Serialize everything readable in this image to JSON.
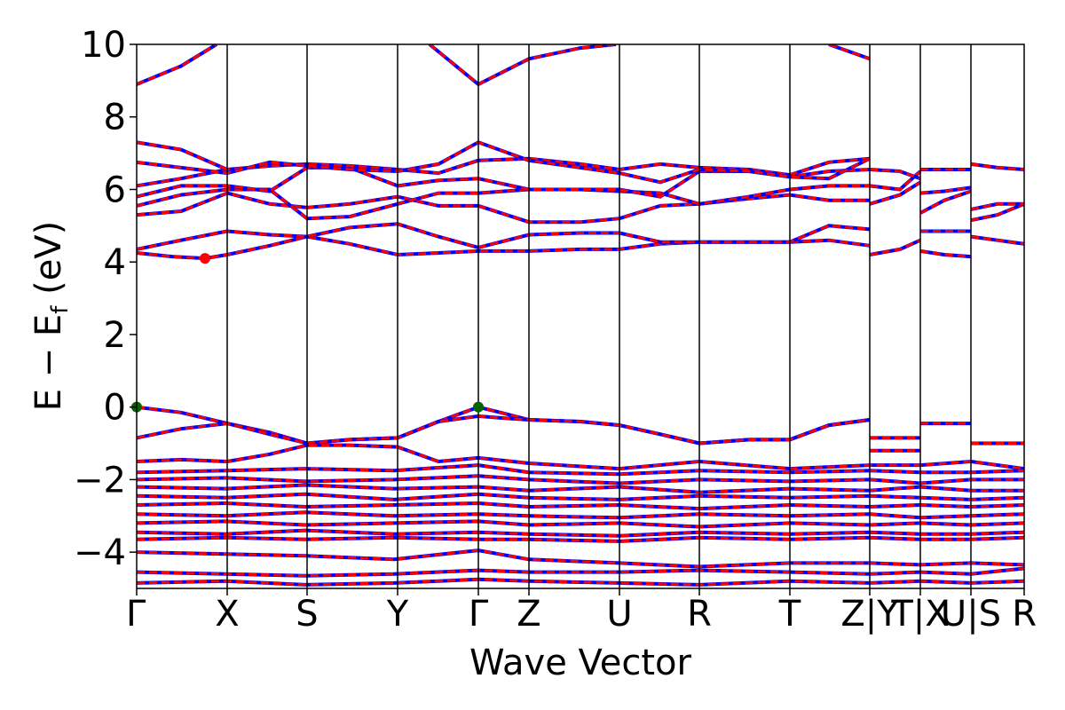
{
  "chart_data": {
    "type": "line",
    "xlabel": "Wave Vector",
    "ylabel": "E − E",
    "ylabel_sub": "f",
    "ylabel_unit": " (eV)",
    "ylim": [
      -5,
      10
    ],
    "yticks": [
      -4,
      -2,
      0,
      2,
      4,
      6,
      8,
      10
    ],
    "ytick_labels": [
      "−4",
      "−2",
      "0",
      "2",
      "4",
      "6",
      "8",
      "10"
    ],
    "xlim": [
      0,
      1
    ],
    "grid": false,
    "line_colors": {
      "band_primary": "#ff0000",
      "band_secondary": "#0000ff",
      "vline": "#000000"
    },
    "kpoints": [
      {
        "label": "Γ",
        "x": 0.0
      },
      {
        "label": "X",
        "x": 0.102
      },
      {
        "label": "S",
        "x": 0.192
      },
      {
        "label": "Y",
        "x": 0.294
      },
      {
        "label": "Γ",
        "x": 0.385
      },
      {
        "label": "Z",
        "x": 0.442
      },
      {
        "label": "U",
        "x": 0.544
      },
      {
        "label": "R",
        "x": 0.634
      },
      {
        "label": "T",
        "x": 0.736
      },
      {
        "label": "Z|Y",
        "x": 0.826
      },
      {
        "label": "T|X",
        "x": 0.883
      },
      {
        "label": "U|S",
        "x": 0.94
      },
      {
        "label": "R",
        "x": 1.0
      }
    ],
    "markers": [
      {
        "name": "vbm-1",
        "x": 0.0,
        "y": 0.0,
        "color": "#006400"
      },
      {
        "name": "vbm-2",
        "x": 0.385,
        "y": 0.0,
        "color": "#006400"
      },
      {
        "name": "cbm",
        "x": 0.077,
        "y": 4.1,
        "color": "#ff0000"
      }
    ],
    "series": [
      {
        "x": [
          0,
          0.05,
          0.102,
          0.15,
          0.192,
          0.24,
          0.294,
          0.34,
          0.385,
          0.41,
          0.442,
          0.5,
          0.544,
          0.59,
          0.634,
          0.69,
          0.736,
          0.78,
          0.826
        ],
        "values": [
          0,
          -0.15,
          -0.45,
          -0.7,
          -1.0,
          -0.9,
          -0.85,
          -0.4,
          0,
          -0.15,
          -0.35,
          -0.4,
          -0.5,
          -0.75,
          -1.0,
          -0.9,
          -0.9,
          -0.5,
          -0.35
        ]
      },
      {
        "x": [
          0,
          0.05,
          0.102,
          0.15,
          0.192,
          0.24,
          0.294,
          0.34,
          0.385,
          0.41,
          0.442,
          0.5,
          0.544,
          0.59,
          0.634,
          0.69,
          0.736,
          0.78,
          0.826
        ],
        "values": [
          -0.85,
          -0.6,
          -0.45,
          -0.75,
          -1.0,
          -0.9,
          -0.85,
          -0.4,
          -0.25,
          -0.3,
          -0.35,
          -0.4,
          -0.5,
          -0.75,
          -1.0,
          -0.9,
          -0.9,
          -0.5,
          -0.35
        ]
      },
      {
        "x": [
          0.826,
          0.883
        ],
        "values": [
          -0.85,
          -0.85
        ]
      },
      {
        "x": [
          0.826,
          0.883
        ],
        "values": [
          -1.2,
          -1.2
        ]
      },
      {
        "x": [
          0.883,
          0.94
        ],
        "values": [
          -0.45,
          -0.45
        ]
      },
      {
        "x": [
          0.94,
          1.0
        ],
        "values": [
          -1.0,
          -1.0
        ]
      },
      {
        "x": [
          0,
          0.05,
          0.102,
          0.15,
          0.192,
          0.24,
          0.294,
          0.34,
          0.385,
          0.442,
          0.544,
          0.634,
          0.736,
          0.826,
          0.883,
          0.94,
          1.0
        ],
        "values": [
          -1.5,
          -1.45,
          -1.5,
          -1.3,
          -1.05,
          -1.05,
          -1.1,
          -1.5,
          -1.4,
          -1.55,
          -1.7,
          -1.5,
          -1.7,
          -1.6,
          -1.6,
          -1.5,
          -1.7
        ]
      },
      {
        "x": [
          0,
          0.1,
          0.19,
          0.29,
          0.385,
          0.442,
          0.544,
          0.634,
          0.736,
          0.826,
          0.883,
          0.94,
          1.0
        ],
        "values": [
          -1.8,
          -1.75,
          -1.7,
          -1.75,
          -1.6,
          -1.8,
          -1.85,
          -1.75,
          -1.8,
          -1.75,
          -1.8,
          -1.8,
          -1.75
        ]
      },
      {
        "x": [
          0,
          0.1,
          0.19,
          0.29,
          0.385,
          0.442,
          0.544,
          0.634,
          0.736,
          0.826,
          0.883,
          0.94,
          1.0
        ],
        "values": [
          -2.0,
          -1.95,
          -2.05,
          -2.0,
          -1.9,
          -2.0,
          -2.1,
          -2.0,
          -2.05,
          -2.0,
          -2.1,
          -2.0,
          -2.0
        ]
      },
      {
        "x": [
          0,
          0.1,
          0.19,
          0.29,
          0.385,
          0.442,
          0.544,
          0.634,
          0.736,
          0.826,
          0.883,
          0.94,
          1.0
        ],
        "values": [
          -2.2,
          -2.25,
          -2.15,
          -2.25,
          -2.2,
          -2.3,
          -2.2,
          -2.35,
          -2.25,
          -2.3,
          -2.2,
          -2.3,
          -2.3
        ]
      },
      {
        "x": [
          0,
          0.1,
          0.19,
          0.29,
          0.385,
          0.442,
          0.544,
          0.634,
          0.736,
          0.826,
          0.883,
          0.94,
          1.0
        ],
        "values": [
          -2.45,
          -2.5,
          -2.4,
          -2.55,
          -2.4,
          -2.5,
          -2.55,
          -2.45,
          -2.5,
          -2.45,
          -2.5,
          -2.55,
          -2.5
        ]
      },
      {
        "x": [
          0,
          0.1,
          0.19,
          0.29,
          0.385,
          0.442,
          0.544,
          0.634,
          0.736,
          0.826,
          0.883,
          0.94,
          1.0
        ],
        "values": [
          -2.7,
          -2.65,
          -2.75,
          -2.7,
          -2.65,
          -2.75,
          -2.7,
          -2.8,
          -2.7,
          -2.75,
          -2.7,
          -2.75,
          -2.7
        ]
      },
      {
        "x": [
          0,
          0.1,
          0.19,
          0.29,
          0.385,
          0.442,
          0.544,
          0.634,
          0.736,
          0.826,
          0.883,
          0.94,
          1.0
        ],
        "values": [
          -2.95,
          -3.0,
          -2.9,
          -3.0,
          -2.95,
          -3.0,
          -3.05,
          -2.95,
          -3.0,
          -2.95,
          -3.05,
          -3.0,
          -2.95
        ]
      },
      {
        "x": [
          0,
          0.1,
          0.19,
          0.29,
          0.385,
          0.442,
          0.544,
          0.634,
          0.736,
          0.826,
          0.883,
          0.94,
          1.0
        ],
        "values": [
          -3.2,
          -3.15,
          -3.25,
          -3.2,
          -3.15,
          -3.25,
          -3.2,
          -3.3,
          -3.2,
          -3.25,
          -3.2,
          -3.25,
          -3.2
        ]
      },
      {
        "x": [
          0,
          0.1,
          0.19,
          0.29,
          0.385,
          0.442,
          0.544,
          0.634,
          0.736,
          0.826,
          0.883,
          0.94,
          1.0
        ],
        "values": [
          -3.45,
          -3.5,
          -3.4,
          -3.5,
          -3.45,
          -3.5,
          -3.55,
          -3.45,
          -3.5,
          -3.45,
          -3.5,
          -3.5,
          -3.45
        ]
      },
      {
        "x": [
          0,
          0.1,
          0.19,
          0.29,
          0.385,
          0.442,
          0.544,
          0.634,
          0.736,
          0.826,
          0.883,
          0.94,
          1.0
        ],
        "values": [
          -3.65,
          -3.6,
          -3.65,
          -3.6,
          -3.65,
          -3.65,
          -3.7,
          -3.6,
          -3.65,
          -3.6,
          -3.65,
          -3.65,
          -3.6
        ]
      },
      {
        "x": [
          0,
          0.1,
          0.19,
          0.29,
          0.385,
          0.442,
          0.544,
          0.634,
          0.736,
          0.826,
          0.883,
          0.94,
          1.0
        ],
        "values": [
          -4.0,
          -4.05,
          -4.1,
          -4.2,
          -3.95,
          -4.2,
          -4.3,
          -4.4,
          -4.3,
          -4.3,
          -4.35,
          -4.3,
          -4.35
        ]
      },
      {
        "x": [
          0,
          0.1,
          0.19,
          0.29,
          0.385,
          0.442,
          0.544,
          0.634,
          0.736,
          0.826,
          0.883,
          0.94,
          1.0
        ],
        "values": [
          -4.55,
          -4.6,
          -4.65,
          -4.6,
          -4.5,
          -4.55,
          -4.55,
          -4.5,
          -4.55,
          -4.6,
          -4.55,
          -4.6,
          -4.45
        ]
      },
      {
        "x": [
          0,
          0.1,
          0.19,
          0.29,
          0.385,
          0.442,
          0.544,
          0.634,
          0.736,
          0.826,
          0.883,
          0.94,
          1.0
        ],
        "values": [
          -4.85,
          -4.8,
          -4.9,
          -4.85,
          -4.75,
          -4.8,
          -4.85,
          -4.9,
          -4.8,
          -4.85,
          -4.8,
          -4.85,
          -4.8
        ]
      },
      {
        "x": [
          0,
          0.04,
          0.077,
          0.102,
          0.15,
          0.192,
          0.24,
          0.294,
          0.34,
          0.385,
          0.442,
          0.5,
          0.544,
          0.59,
          0.634,
          0.69,
          0.736,
          0.78,
          0.826
        ],
        "values": [
          4.25,
          4.15,
          4.1,
          4.2,
          4.45,
          4.7,
          4.5,
          4.2,
          4.25,
          4.3,
          4.3,
          4.35,
          4.35,
          4.5,
          4.55,
          4.55,
          4.55,
          4.6,
          4.45
        ]
      },
      {
        "x": [
          0,
          0.05,
          0.102,
          0.15,
          0.192,
          0.24,
          0.294,
          0.34,
          0.385,
          0.442,
          0.5,
          0.544,
          0.59,
          0.634,
          0.69,
          0.736,
          0.78,
          0.826
        ],
        "values": [
          4.35,
          4.6,
          4.85,
          4.75,
          4.7,
          4.95,
          5.05,
          4.7,
          4.4,
          4.75,
          4.8,
          4.8,
          4.55,
          4.55,
          4.55,
          4.55,
          5.0,
          4.9
        ]
      },
      {
        "x": [
          0,
          0.05,
          0.102,
          0.15,
          0.192,
          0.24,
          0.294,
          0.34,
          0.385,
          0.442,
          0.5,
          0.544,
          0.59,
          0.634,
          0.69,
          0.736,
          0.78,
          0.826
        ],
        "values": [
          5.3,
          5.4,
          5.9,
          5.6,
          5.5,
          5.6,
          5.8,
          5.55,
          5.55,
          5.1,
          5.1,
          5.2,
          5.55,
          5.6,
          5.75,
          5.85,
          5.7,
          5.7
        ]
      },
      {
        "x": [
          0,
          0.05,
          0.102,
          0.15,
          0.192,
          0.24,
          0.294,
          0.34,
          0.385,
          0.442,
          0.5,
          0.544,
          0.59,
          0.634,
          0.69,
          0.736,
          0.78,
          0.826
        ],
        "values": [
          5.55,
          5.85,
          6.0,
          6.0,
          5.2,
          5.25,
          5.6,
          5.9,
          5.9,
          6.0,
          6.0,
          5.95,
          5.9,
          5.6,
          5.8,
          6.0,
          6.1,
          6.1
        ]
      },
      {
        "x": [
          0,
          0.05,
          0.102,
          0.15,
          0.192,
          0.24,
          0.294,
          0.34,
          0.385,
          0.442,
          0.5,
          0.544,
          0.59,
          0.634,
          0.69,
          0.736,
          0.78,
          0.826
        ],
        "values": [
          5.8,
          6.1,
          6.1,
          5.95,
          6.6,
          6.6,
          6.1,
          6.25,
          6.3,
          6.0,
          6.0,
          6.0,
          5.8,
          6.5,
          6.5,
          6.35,
          6.5,
          6.55
        ]
      },
      {
        "x": [
          0,
          0.05,
          0.102,
          0.15,
          0.192,
          0.24,
          0.294,
          0.34,
          0.385,
          0.442,
          0.5,
          0.544,
          0.59,
          0.634,
          0.69,
          0.736,
          0.78,
          0.826
        ],
        "values": [
          6.1,
          6.3,
          6.55,
          6.65,
          6.7,
          6.65,
          6.55,
          6.45,
          6.8,
          6.85,
          6.7,
          6.55,
          6.7,
          6.6,
          6.55,
          6.4,
          6.75,
          6.85
        ]
      },
      {
        "x": [
          0,
          0.05,
          0.102,
          0.15,
          0.192,
          0.24,
          0.294,
          0.34,
          0.385,
          0.442,
          0.5,
          0.544,
          0.59,
          0.634,
          0.69,
          0.736,
          0.78,
          0.826
        ],
        "values": [
          6.75,
          6.6,
          6.45,
          6.75,
          6.65,
          6.55,
          6.5,
          6.7,
          7.3,
          6.8,
          6.6,
          6.45,
          6.2,
          6.55,
          6.5,
          6.35,
          6.3,
          6.85
        ]
      },
      {
        "x": [
          0,
          0.05,
          0.102
        ],
        "values": [
          7.3,
          7.1,
          6.55
        ]
      },
      {
        "x": [
          0,
          0.05,
          0.09
        ],
        "values": [
          8.9,
          9.4,
          10.0
        ]
      },
      {
        "x": [
          0.33,
          0.385,
          0.442,
          0.5,
          0.54
        ],
        "values": [
          10.0,
          8.9,
          9.6,
          9.9,
          10.0
        ]
      },
      {
        "x": [
          0.78,
          0.826
        ],
        "values": [
          10.0,
          9.6
        ]
      },
      {
        "x": [
          0.826,
          0.86,
          0.883
        ],
        "values": [
          4.2,
          4.35,
          4.6
        ]
      },
      {
        "x": [
          0.826,
          0.86,
          0.883
        ],
        "values": [
          5.6,
          5.85,
          6.2
        ]
      },
      {
        "x": [
          0.826,
          0.86,
          0.883
        ],
        "values": [
          6.1,
          6.0,
          6.5
        ]
      },
      {
        "x": [
          0.826,
          0.86,
          0.883
        ],
        "values": [
          6.55,
          6.5,
          6.3
        ]
      },
      {
        "x": [
          0.883,
          0.91,
          0.94
        ],
        "values": [
          4.3,
          4.2,
          4.15
        ]
      },
      {
        "x": [
          0.883,
          0.91,
          0.94
        ],
        "values": [
          4.85,
          4.85,
          4.85
        ]
      },
      {
        "x": [
          0.883,
          0.91,
          0.94
        ],
        "values": [
          5.35,
          5.7,
          5.95
        ]
      },
      {
        "x": [
          0.883,
          0.91,
          0.94
        ],
        "values": [
          5.9,
          5.95,
          6.05
        ]
      },
      {
        "x": [
          0.883,
          0.91,
          0.94
        ],
        "values": [
          6.55,
          6.55,
          6.55
        ]
      },
      {
        "x": [
          0.94,
          0.97,
          1.0
        ],
        "values": [
          4.7,
          4.6,
          4.5
        ]
      },
      {
        "x": [
          0.94,
          0.97,
          1.0
        ],
        "values": [
          5.15,
          5.3,
          5.6
        ]
      },
      {
        "x": [
          0.94,
          0.97,
          1.0
        ],
        "values": [
          5.45,
          5.6,
          5.6
        ]
      },
      {
        "x": [
          0.94,
          0.97,
          1.0
        ],
        "values": [
          6.7,
          6.6,
          6.55
        ]
      }
    ]
  }
}
